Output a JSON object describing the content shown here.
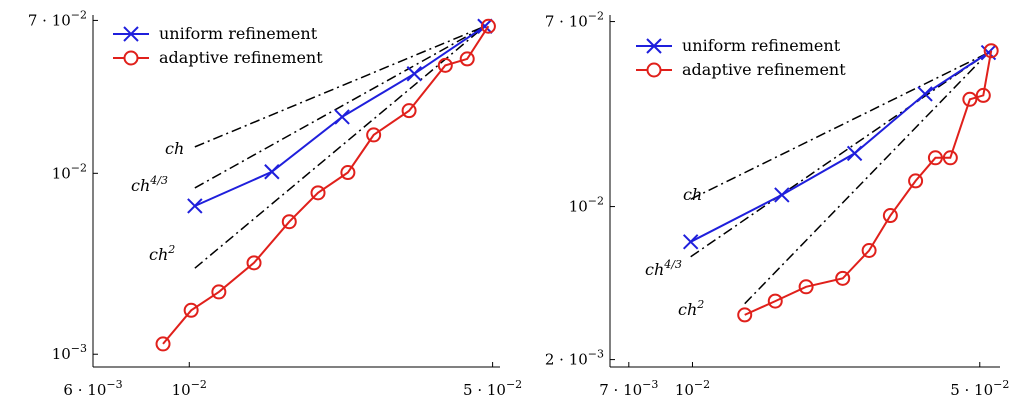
{
  "chart_data": [
    {
      "type": "line",
      "xscale": "log",
      "yscale": "log",
      "xlim": [
        0.006,
        0.052
      ],
      "ylim": [
        0.00085,
        0.075
      ],
      "x_ticks": [
        {
          "value": 0.006,
          "mant": "6 · 10",
          "exp": "−3"
        },
        {
          "value": 0.01,
          "mant": "10",
          "exp": "−2"
        },
        {
          "value": 0.05,
          "mant": "5 · 10",
          "exp": "−2"
        }
      ],
      "y_ticks": [
        {
          "value": 0.001,
          "mant": "10",
          "exp": "−3"
        },
        {
          "value": 0.01,
          "mant": "10",
          "exp": "−2"
        },
        {
          "value": 0.07,
          "mant": "7 · 10",
          "exp": "−2"
        }
      ],
      "legend_position": "top-left",
      "series": [
        {
          "name": "uniform refinement",
          "color": "#1f1fdc",
          "marker": "x",
          "x": [
            0.0103,
            0.0155,
            0.0225,
            0.033,
            0.048
          ],
          "y": [
            0.0066,
            0.0102,
            0.0205,
            0.0355,
            0.065
          ]
        },
        {
          "name": "adaptive refinement",
          "color": "#e0201b",
          "marker": "circle",
          "x": [
            0.0087,
            0.0101,
            0.0117,
            0.0141,
            0.017,
            0.0198,
            0.0232,
            0.0266,
            0.0321,
            0.0389,
            0.0437,
            0.0489
          ],
          "y": [
            0.00114,
            0.00175,
            0.00221,
            0.0032,
            0.0054,
            0.0078,
            0.0101,
            0.0163,
            0.0222,
            0.0395,
            0.0429,
            0.065
          ]
        }
      ],
      "reference_lines": [
        {
          "label": "ch",
          "exp": "",
          "x": [
            0.0103,
            0.048
          ],
          "y": [
            0.014,
            0.065
          ]
        },
        {
          "label": "ch",
          "exp": "4/3",
          "x": [
            0.0103,
            0.048
          ],
          "y": [
            0.0083,
            0.065
          ]
        },
        {
          "label": "ch",
          "exp": "2",
          "x": [
            0.0103,
            0.048
          ],
          "y": [
            0.00299,
            0.065
          ]
        }
      ]
    },
    {
      "type": "line",
      "xscale": "log",
      "yscale": "log",
      "xlim": [
        0.0063,
        0.056
      ],
      "ylim": [
        0.00185,
        0.075
      ],
      "x_ticks": [
        {
          "value": 0.007,
          "mant": "7 · 10",
          "exp": "−3"
        },
        {
          "value": 0.01,
          "mant": "10",
          "exp": "−2"
        },
        {
          "value": 0.05,
          "mant": "5 · 10",
          "exp": "−2"
        }
      ],
      "y_ticks": [
        {
          "value": 0.002,
          "mant": "2 · 10",
          "exp": "−3"
        },
        {
          "value": 0.01,
          "mant": "10",
          "exp": "−2"
        },
        {
          "value": 0.07,
          "mant": "7 · 10",
          "exp": "−2"
        }
      ],
      "legend_position": "top-left",
      "series": [
        {
          "name": "uniform refinement",
          "color": "#1f1fdc",
          "marker": "x",
          "x": [
            0.0099,
            0.0165,
            0.0248,
            0.0368,
            0.0525
          ],
          "y": [
            0.0069,
            0.0113,
            0.0175,
            0.0327,
            0.0505
          ]
        },
        {
          "name": "adaptive refinement",
          "color": "#e0201b",
          "marker": "circle",
          "x": [
            0.0134,
            0.0159,
            0.0189,
            0.0232,
            0.0269,
            0.0303,
            0.0349,
            0.039,
            0.0424,
            0.0473,
            0.051,
            0.0533
          ],
          "y": [
            0.0032,
            0.0037,
            0.0043,
            0.0047,
            0.0063,
            0.0091,
            0.0131,
            0.0167,
            0.0167,
            0.0309,
            0.0322,
            0.0515
          ]
        }
      ],
      "reference_lines": [
        {
          "label": "ch",
          "exp": "",
          "x": [
            0.0099,
            0.0525
          ],
          "y": [
            0.0108,
            0.0505
          ]
        },
        {
          "label": "ch",
          "exp": "4/3",
          "x": [
            0.0099,
            0.0525
          ],
          "y": [
            0.0059,
            0.0505
          ]
        },
        {
          "label": "ch",
          "exp": "2",
          "x": [
            0.0134,
            0.0525
          ],
          "y": [
            0.0036,
            0.0505
          ]
        }
      ]
    }
  ]
}
